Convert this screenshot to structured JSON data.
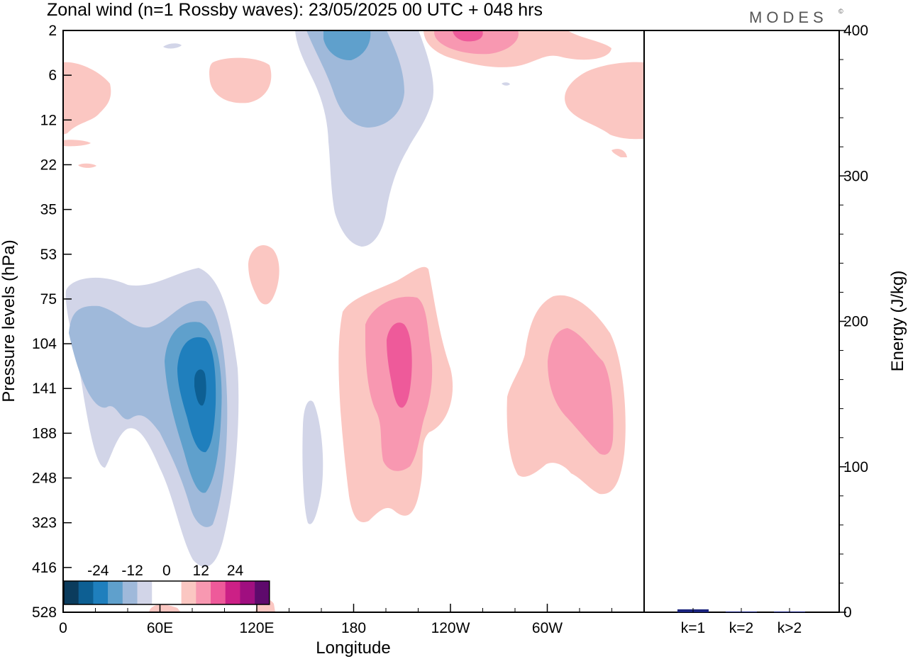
{
  "chart_data": {
    "type": "contour",
    "title": "Zonal wind (n=1 Rossby waves):  23/05/2025  00 UTC  + 048 hrs",
    "logo": "MODES",
    "logo_mark": "©",
    "xlabel": "Longitude",
    "ylabel": "Pressure levels (hPa)",
    "x_ticks": [
      "0",
      "60E",
      "120E",
      "180",
      "120W",
      "60W"
    ],
    "x_tick_values": [
      0,
      60,
      120,
      180,
      240,
      300
    ],
    "xlim": [
      0,
      360
    ],
    "y_ticks": [
      "2",
      "6",
      "12",
      "22",
      "35",
      "53",
      "75",
      "104",
      "141",
      "188",
      "248",
      "323",
      "416",
      "528"
    ],
    "colorbar": {
      "labels": [
        "-24",
        "-12",
        "0",
        "12",
        "24"
      ],
      "levels": [
        -24,
        -12,
        0,
        12,
        24
      ],
      "colors": [
        "#0b3c5d",
        "#0d5f93",
        "#1f7fbd",
        "#5fa0cc",
        "#9fb9da",
        "#d2d5e8",
        "#ffffff",
        "#ffffff",
        "#fbc7c2",
        "#f898b1",
        "#ee5a9a",
        "#cc2086",
        "#a00f80",
        "#5e0a6c"
      ]
    },
    "energy_panel": {
      "type": "bar",
      "ylabel": "Energy (J/kg)",
      "categories": [
        "k=1",
        "k=2",
        "k>2"
      ],
      "values": [
        2,
        0.5,
        0.5
      ],
      "ylim": [
        0,
        400
      ],
      "y_ticks": [
        "0",
        "100",
        "200",
        "300",
        "400"
      ],
      "y_tick_values": [
        0,
        100,
        200,
        300,
        400
      ],
      "bar_color": "#1a237e"
    }
  }
}
